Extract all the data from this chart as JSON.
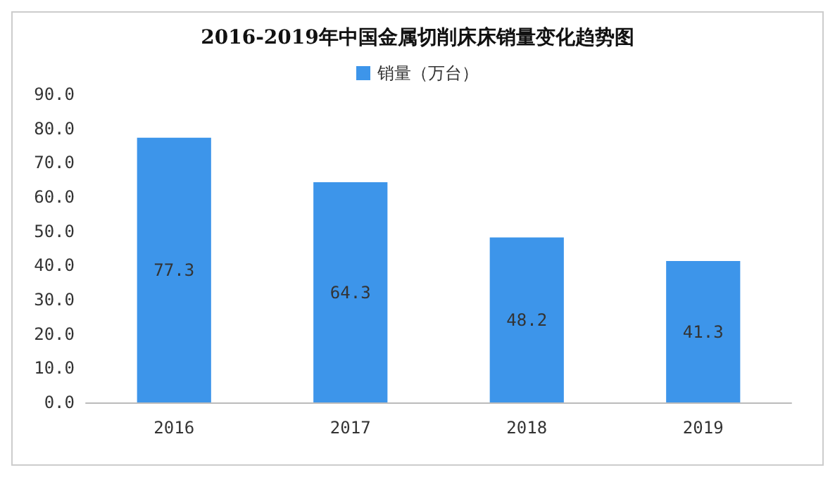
{
  "chart_data": {
    "type": "bar",
    "title": "2016-2019年中国金属切削床床销量变化趋势图",
    "categories": [
      "2016",
      "2017",
      "2018",
      "2019"
    ],
    "series": [
      {
        "name": "销量（万台）",
        "color": "#3d95ea",
        "values": [
          77.3,
          64.3,
          48.2,
          41.3
        ]
      }
    ],
    "ylim": [
      0,
      90
    ],
    "yticks": [
      {
        "value": 0,
        "label": "0.0"
      },
      {
        "value": 10,
        "label": "10.0"
      },
      {
        "value": 20,
        "label": "20.0"
      },
      {
        "value": 30,
        "label": "30.0"
      },
      {
        "value": 40,
        "label": "40.0"
      },
      {
        "value": 50,
        "label": "50.0"
      },
      {
        "value": 60,
        "label": "60.0"
      },
      {
        "value": 70,
        "label": "70.0"
      },
      {
        "value": 80,
        "label": "80.0"
      },
      {
        "value": 90,
        "label": "90.0"
      }
    ],
    "data_labels": true,
    "legend": "top",
    "grid": false
  }
}
